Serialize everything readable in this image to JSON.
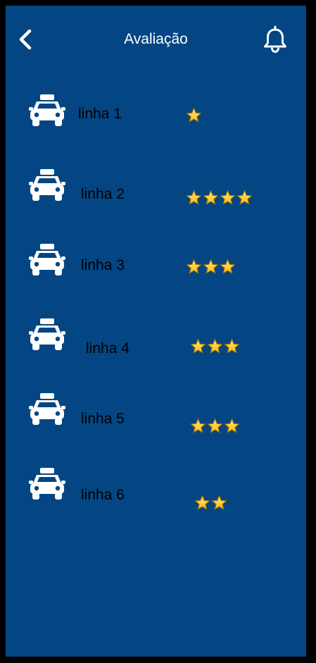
{
  "header": {
    "title": "Avaliação",
    "back_icon": "chevron-left-icon",
    "bell_icon": "bell-icon"
  },
  "colors": {
    "background": "#044683",
    "frame": "#000000",
    "icon": "#ffffff",
    "star_fill": "#f6c21c",
    "star_outline": "#a66d00",
    "label_text": "#000000"
  },
  "rows": [
    {
      "label": "linha 1",
      "stars": 1,
      "icon": "taxi-icon"
    },
    {
      "label": "linha 2",
      "stars": 4,
      "icon": "taxi-icon"
    },
    {
      "label": "linha 3",
      "stars": 3,
      "icon": "taxi-icon"
    },
    {
      "label": "linha 4",
      "stars": 3,
      "icon": "taxi-icon"
    },
    {
      "label": "linha 5",
      "stars": 3,
      "icon": "taxi-icon"
    },
    {
      "label": "linha 6",
      "stars": 2,
      "icon": "taxi-icon"
    }
  ]
}
